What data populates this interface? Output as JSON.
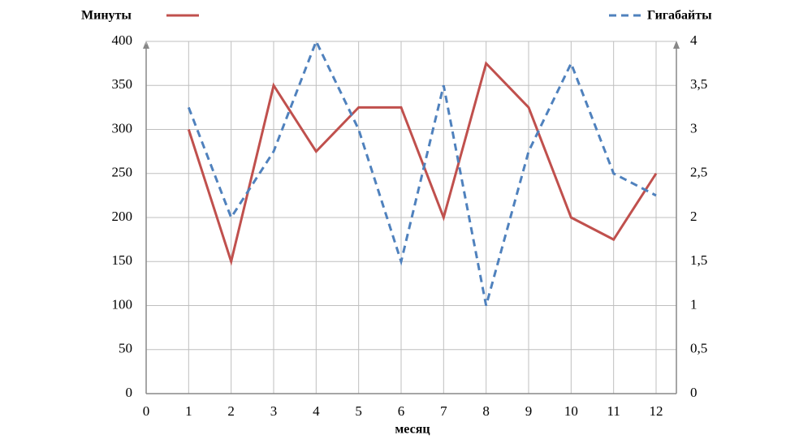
{
  "chart_data": {
    "type": "line",
    "x": [
      1,
      2,
      3,
      4,
      5,
      6,
      7,
      8,
      9,
      10,
      11,
      12
    ],
    "x_label": "месяц",
    "xlim": [
      0,
      12
    ],
    "xticks": [
      0,
      1,
      2,
      3,
      4,
      5,
      6,
      7,
      8,
      9,
      10,
      11,
      12
    ],
    "ylim": [
      0,
      400
    ],
    "yticks": [
      0,
      50,
      100,
      150,
      200,
      250,
      300,
      350,
      400
    ],
    "y2lim": [
      0,
      4
    ],
    "y2ticks": [
      0,
      {
        "value": 0.5,
        "label": "0,5"
      },
      1,
      {
        "value": 1.5,
        "label": "1,5"
      },
      2,
      {
        "value": 2.5,
        "label": "2,5"
      },
      3,
      {
        "value": 3.5,
        "label": "3,5"
      },
      4
    ],
    "grid": true,
    "series": [
      {
        "name": "Минуты",
        "color": "#c0504d",
        "line_style": "solid",
        "values": [
          300,
          150,
          350,
          275,
          325,
          325,
          200,
          375,
          325,
          200,
          175,
          250
        ]
      },
      {
        "name": "Гигабайты",
        "color": "#4f81bd",
        "line_style": "dashed",
        "axis": "y2",
        "values": [
          3.25,
          2,
          2.75,
          4,
          3,
          1.5,
          3.5,
          1,
          2.75,
          3.75,
          2.5,
          2.25
        ]
      }
    ]
  }
}
